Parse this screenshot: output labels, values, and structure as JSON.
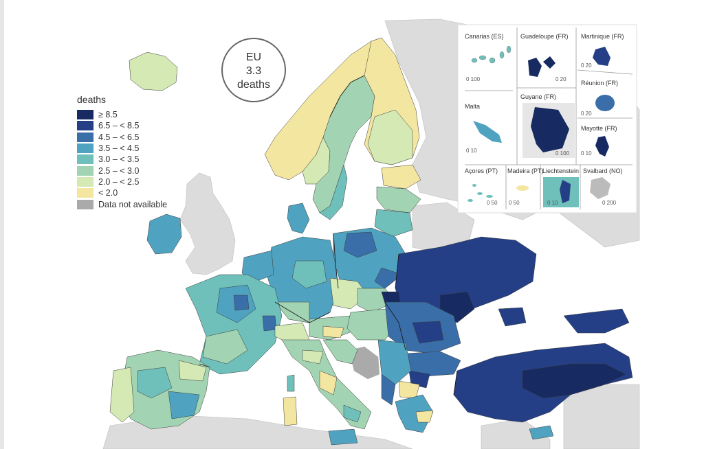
{
  "eu_summary": {
    "line1": "EU",
    "line2": "3.3",
    "line3": "deaths"
  },
  "legend": {
    "title": "deaths",
    "classes": [
      {
        "label": "≥ 8.5",
        "color": "#172b62"
      },
      {
        "label": "6.5 – < 8.5",
        "color": "#243f86"
      },
      {
        "label": "4.5 – < 6.5",
        "color": "#3a6ea8"
      },
      {
        "label": "3.5 – < 4.5",
        "color": "#4fa3c0"
      },
      {
        "label": "3.0 – < 3.5",
        "color": "#6fbfbb"
      },
      {
        "label": "2.5 – < 3.0",
        "color": "#a2d4b3"
      },
      {
        "label": "2.0 – < 2.5",
        "color": "#d4e9b4"
      },
      {
        "label": "< 2.0",
        "color": "#f3e6a0"
      },
      {
        "label": "Data not available",
        "color": "#aaaaaa"
      }
    ]
  },
  "insets": {
    "canarias": {
      "name": "Canarias (ES)",
      "scale": "0   100"
    },
    "guadeloupe": {
      "name": "Guadeloupe (FR)",
      "scale": "0  20"
    },
    "martinique": {
      "name": "Martinique (FR)",
      "scale": "0  20"
    },
    "reunion": {
      "name": "Réunion (FR)",
      "scale": "0  20"
    },
    "malta": {
      "name": "Malta",
      "scale": "0  10"
    },
    "guyane": {
      "name": "Guyane (FR)",
      "scale": "0   100"
    },
    "mayotte": {
      "name": "Mayotte (FR)",
      "scale": "0  10"
    },
    "acores": {
      "name": "Açores (PT)",
      "scale": "0   50"
    },
    "madeira": {
      "name": "Madeira (PT)",
      "scale": "0   50"
    },
    "liechtenstein": {
      "name": "Liechtenstein",
      "scale": "0  10"
    },
    "svalbard": {
      "name": "Svalbard (NO)",
      "scale": "0   200"
    }
  },
  "colors": {
    "non_eu_land": "#dcdcdc",
    "sea": "#ffffff",
    "border": "#2b2b2b"
  }
}
